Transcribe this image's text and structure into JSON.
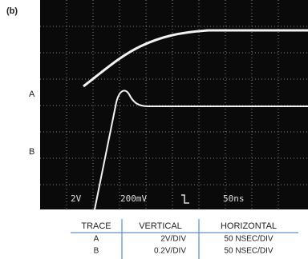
{
  "figure_label": "(b)",
  "trace_labels": [
    "A",
    "B"
  ],
  "screen_readouts": [
    "2V",
    "200mV",
    "50ns"
  ],
  "table": {
    "header": [
      "TRACE",
      "VERTICAL",
      "HORIZONTAL"
    ],
    "rows": [
      [
        "A",
        "2V/DIV",
        "50 NSEC/DIV"
      ],
      [
        "B",
        "0.2V/DIV",
        "50 NSEC/DIV"
      ]
    ]
  }
}
